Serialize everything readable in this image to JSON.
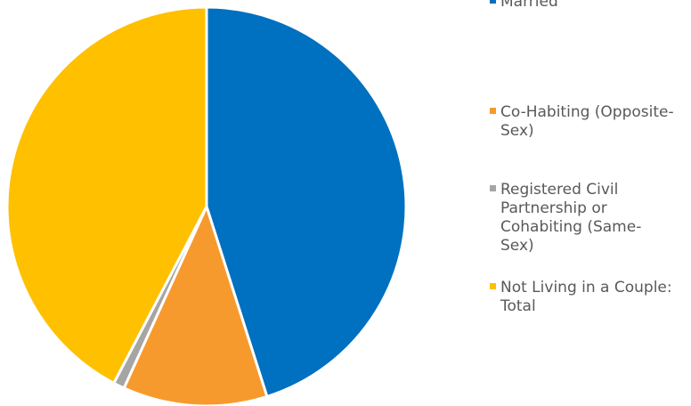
{
  "chart_data": {
    "type": "pie",
    "categories": [
      "Married",
      "Co-Habiting (Opposite-Sex)",
      "Registered Civil Partnership or Cohabiting (Same-Sex)",
      "Not Living in a Couple: Total"
    ],
    "values": [
      45.1,
      11.7,
      0.9,
      42.3
    ],
    "colors": [
      "#0070c0",
      "#f79a2e",
      "#a5a5a5",
      "#ffc000"
    ],
    "legend": "right"
  }
}
